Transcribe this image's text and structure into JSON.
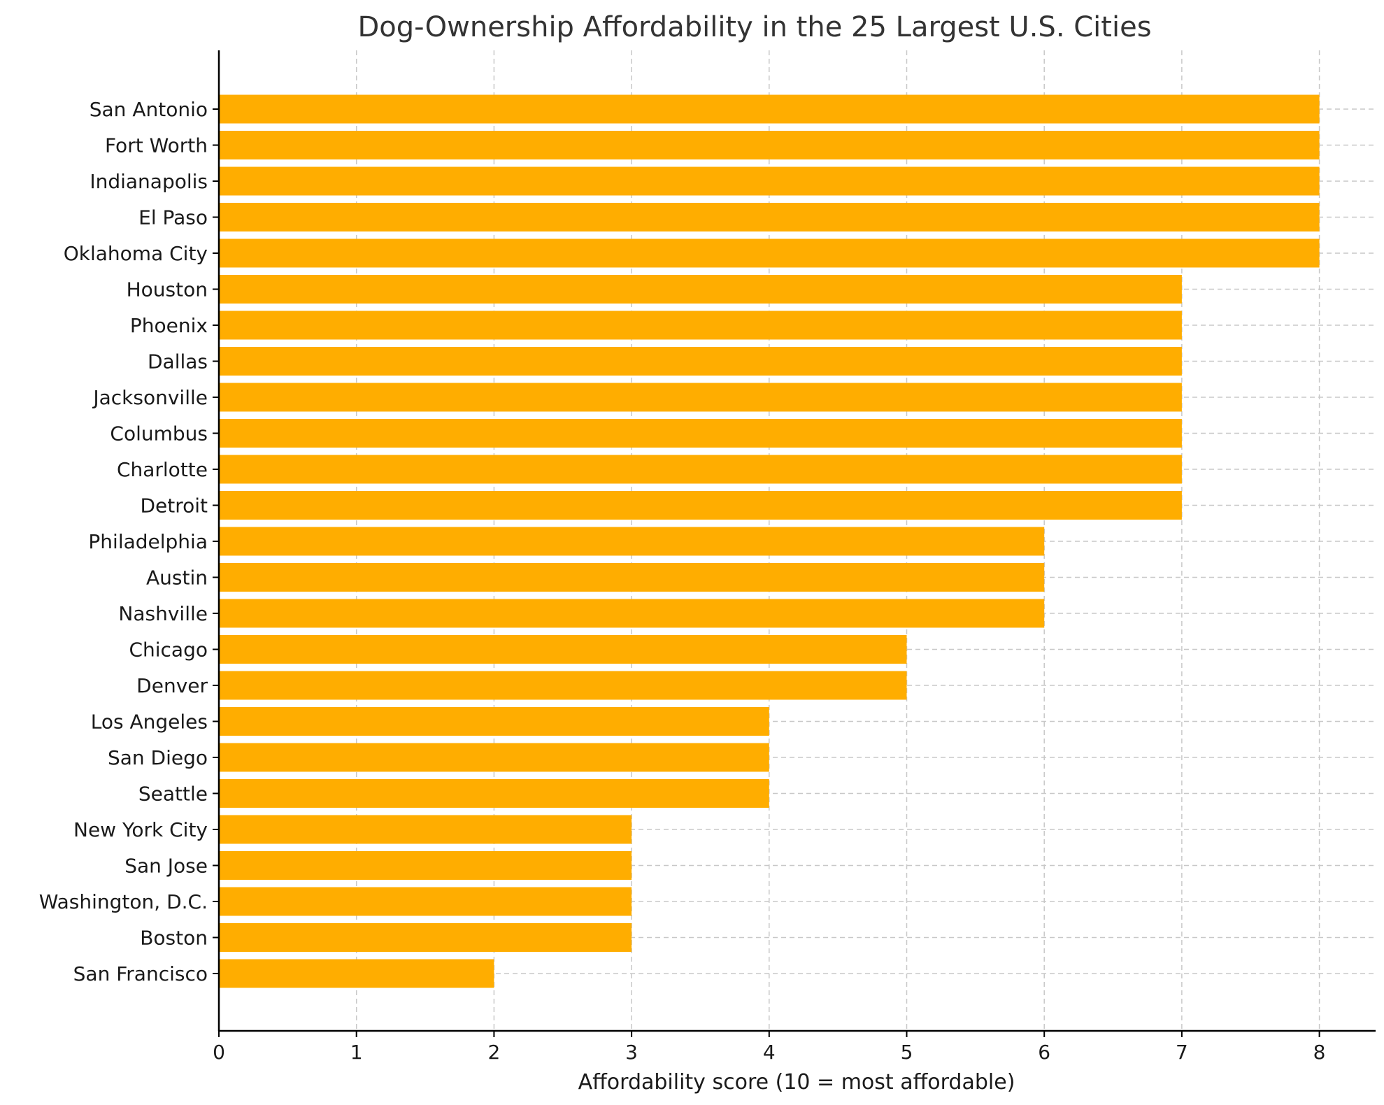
{
  "chart_data": {
    "type": "bar",
    "orientation": "horizontal",
    "title": "Dog-Ownership Affordability in the 25 Largest U.S. Cities",
    "xlabel": "Affordability score (10 = most affordable)",
    "ylabel": "",
    "xlim": [
      0,
      8.4
    ],
    "xticks": [
      "0",
      "1",
      "2",
      "3",
      "4",
      "5",
      "6",
      "7",
      "8"
    ],
    "grid": true,
    "bar_color": "#FFAD00",
    "categories": [
      "San Antonio",
      "Fort Worth",
      "Indianapolis",
      "El Paso",
      "Oklahoma City",
      "Houston",
      "Phoenix",
      "Dallas",
      "Jacksonville",
      "Columbus",
      "Charlotte",
      "Detroit",
      "Philadelphia",
      "Austin",
      "Nashville",
      "Chicago",
      "Denver",
      "Los Angeles",
      "San Diego",
      "Seattle",
      "New York City",
      "San Jose",
      "Washington, D.C.",
      "Boston",
      "San Francisco"
    ],
    "values": [
      8,
      8,
      8,
      8,
      8,
      7,
      7,
      7,
      7,
      7,
      7,
      7,
      6,
      6,
      6,
      5,
      5,
      4,
      4,
      4,
      3,
      3,
      3,
      3,
      2
    ]
  }
}
